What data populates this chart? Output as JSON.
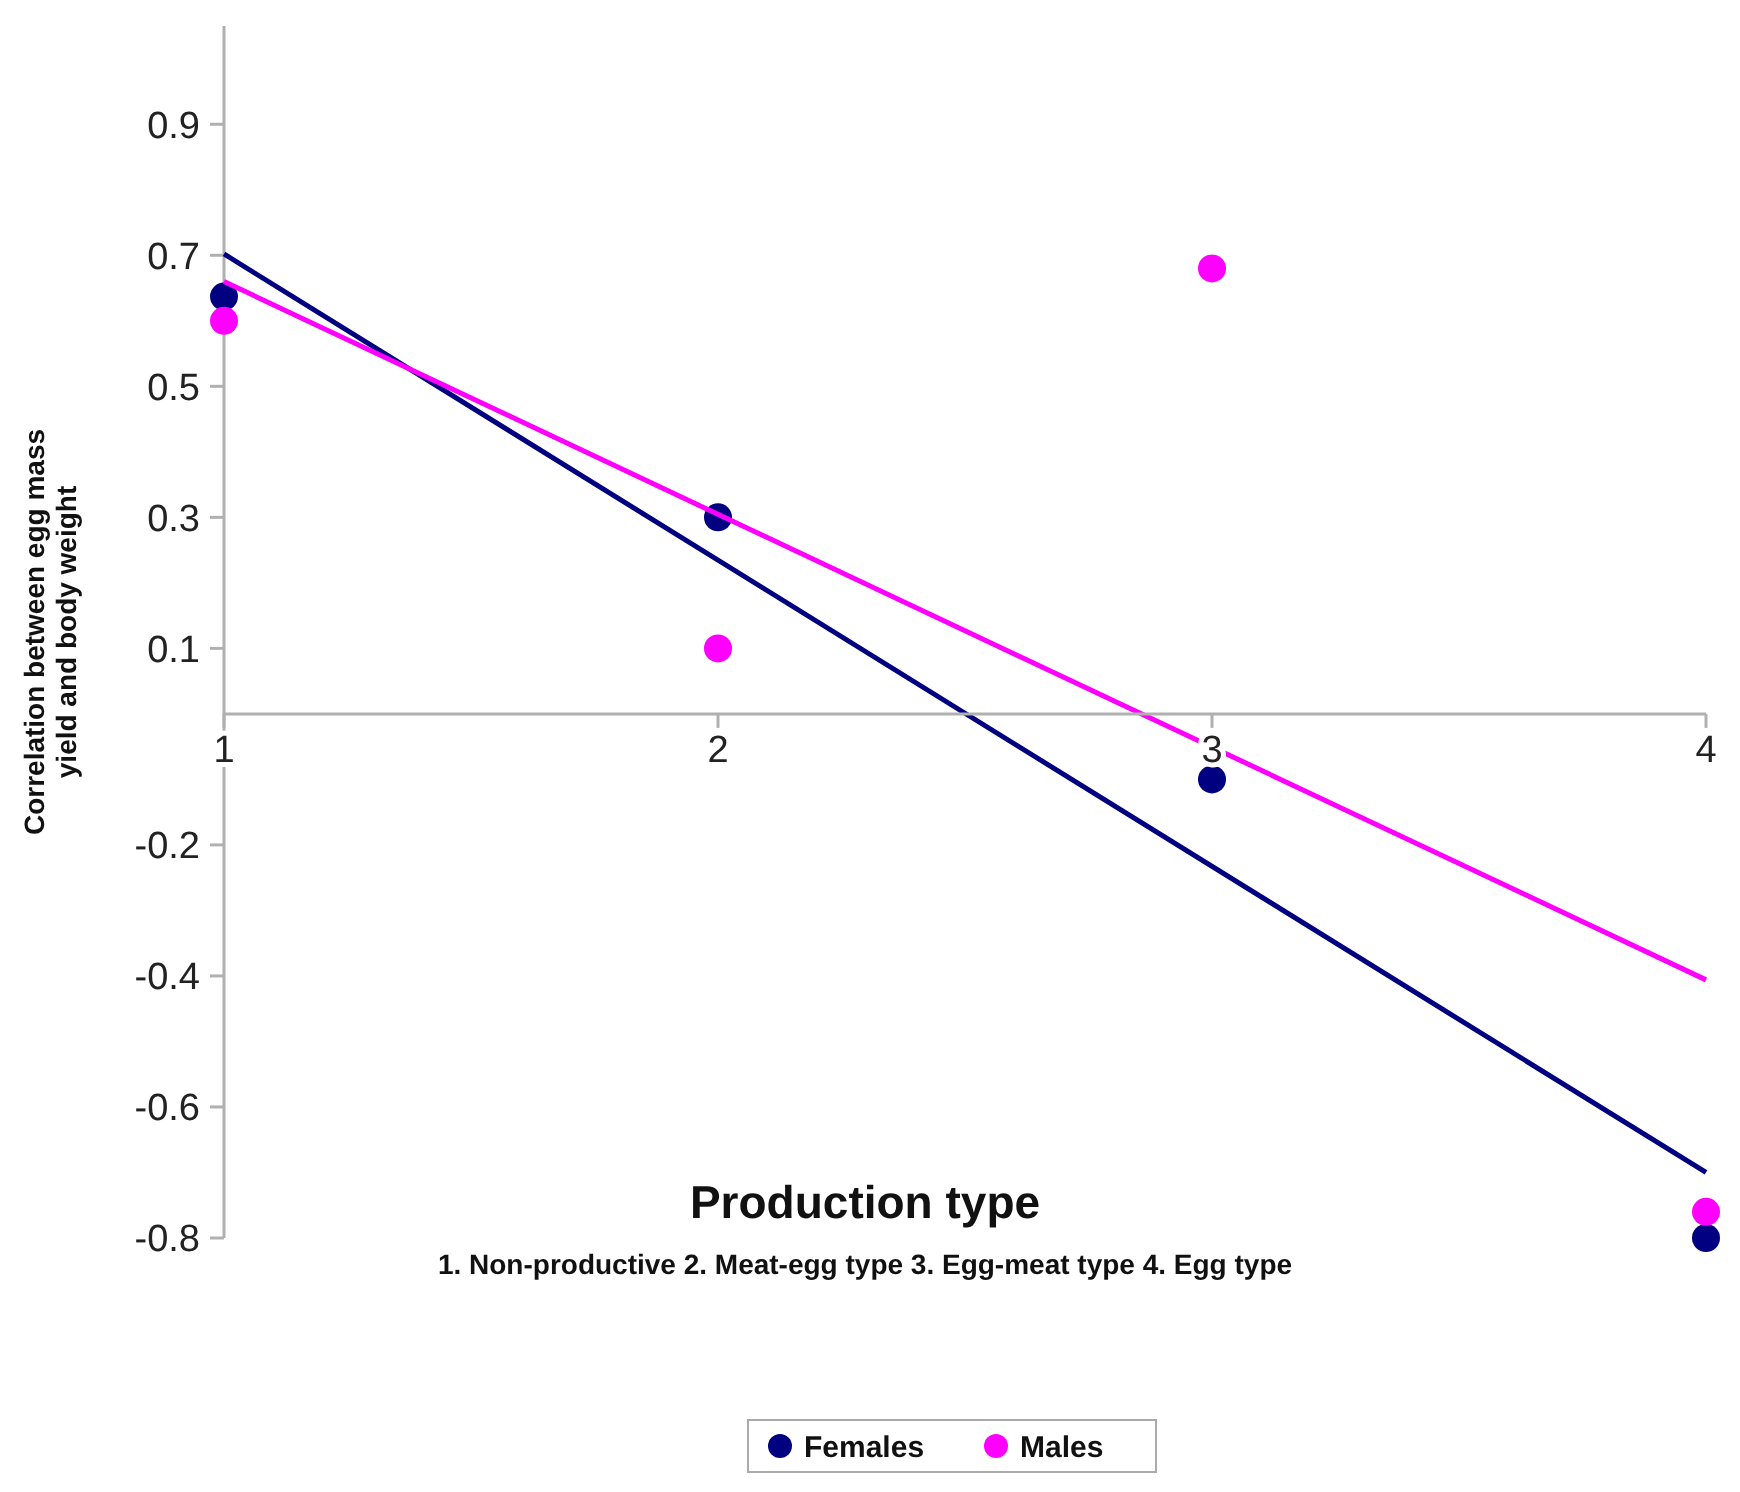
{
  "chart_data": {
    "type": "scatter",
    "xlabel": "Production type",
    "ylabel": "Correlation between egg mass\nyield and body weight",
    "annotations": [
      "1. Non-productive 2. Meat-egg type 3. Egg-meat type 4. Egg type"
    ],
    "xlim": [
      1,
      4
    ],
    "xticks": [
      1,
      2,
      3,
      4
    ],
    "ylim": [
      -0.8,
      1.05
    ],
    "yticks": [
      0.9,
      0.7,
      0.5,
      0.3,
      0.1,
      -0.2,
      -0.4,
      -0.6,
      -0.8
    ],
    "grid": false,
    "legend": "bottom",
    "marker": "circle",
    "series": [
      {
        "name": "Females",
        "color": "#000080",
        "x": [
          1,
          2,
          3,
          4
        ],
        "values": [
          0.637,
          0.3,
          -0.1,
          -0.8
        ]
      },
      {
        "name": "Males",
        "color": "#ff00ff",
        "x": [
          1,
          2,
          3,
          4
        ],
        "values": [
          0.6,
          0.1,
          0.68,
          -0.76
        ]
      },
      {
        "type": "line",
        "color": "#000080",
        "x": [
          1,
          4
        ],
        "values": [
          0.702,
          -0.7
        ],
        "marker": "none",
        "line_style": "solid"
      },
      {
        "type": "line",
        "color": "#ff00ff",
        "x": [
          1,
          4
        ],
        "values": [
          0.66,
          -0.406
        ],
        "marker": "none",
        "line_style": "solid"
      }
    ]
  }
}
